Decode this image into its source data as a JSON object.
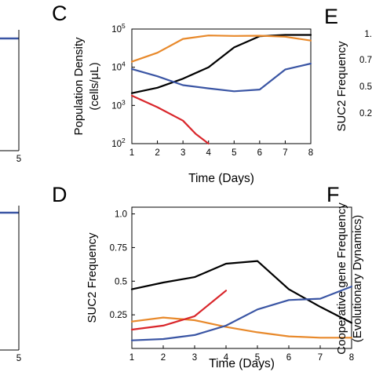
{
  "colors": {
    "black": "#000000",
    "orange": "#e8892b",
    "blue": "#3a55a4",
    "red": "#d9262b"
  },
  "panel_letters": {
    "c": "C",
    "d": "D",
    "e": "E",
    "f": "F"
  },
  "chart_data": [
    {
      "panel": "C",
      "type": "line",
      "xlabel": "Time (Days)",
      "ylabel_line1": "Population Density",
      "ylabel_line2": "(cells/μL)",
      "xlim": [
        1,
        8
      ],
      "ylim": [
        100,
        100000
      ],
      "yscale": "log",
      "x_ticks": [
        1,
        2,
        3,
        4,
        5,
        6,
        7,
        8
      ],
      "y_ticks": [
        {
          "value": 100,
          "base": "10",
          "exp": "2"
        },
        {
          "value": 1000,
          "base": "10",
          "exp": "3"
        },
        {
          "value": 10000,
          "base": "10",
          "exp": "4"
        },
        {
          "value": 100000,
          "base": "10",
          "exp": "5"
        }
      ],
      "series": [
        {
          "color": "black",
          "x": [
            1,
            2,
            3,
            4,
            5,
            6,
            7,
            8
          ],
          "y": [
            2100,
            2900,
            5000,
            10000,
            33000,
            65000,
            70000,
            70000
          ]
        },
        {
          "color": "orange",
          "x": [
            1,
            2,
            3,
            4,
            5,
            6,
            7,
            8
          ],
          "y": [
            14000,
            24000,
            55000,
            68000,
            66000,
            67000,
            63000,
            50000
          ]
        },
        {
          "color": "blue",
          "x": [
            1,
            2,
            3,
            4,
            5,
            6,
            7,
            8
          ],
          "y": [
            9000,
            5800,
            3400,
            2800,
            2350,
            2600,
            8700,
            12500
          ]
        },
        {
          "color": "red",
          "x": [
            1,
            2,
            3,
            3.5,
            4
          ],
          "y": [
            1800,
            900,
            400,
            180,
            100
          ]
        }
      ]
    },
    {
      "panel": "D",
      "type": "line",
      "xlabel": "Time (Days)",
      "ylabel": "SUC2 Frequency",
      "xlim": [
        1,
        8
      ],
      "ylim": [
        0,
        1.05
      ],
      "x_ticks": [
        1,
        2,
        3,
        4,
        5,
        6,
        7,
        8
      ],
      "y_ticks": [
        {
          "value": 0.25,
          "label": "0.25"
        },
        {
          "value": 0.5,
          "label": "0.5"
        },
        {
          "value": 0.75,
          "label": "0.75"
        },
        {
          "value": 1.0,
          "label": "1.0"
        }
      ],
      "series": [
        {
          "color": "black",
          "x": [
            1,
            2,
            3,
            4,
            5,
            6,
            7,
            8
          ],
          "y": [
            0.44,
            0.49,
            0.53,
            0.63,
            0.65,
            0.44,
            0.31,
            0.19
          ]
        },
        {
          "color": "orange",
          "x": [
            1,
            2,
            3,
            4,
            5,
            6,
            7,
            8
          ],
          "y": [
            0.2,
            0.23,
            0.21,
            0.16,
            0.12,
            0.09,
            0.08,
            0.08
          ]
        },
        {
          "color": "blue",
          "x": [
            1,
            2,
            3,
            4,
            5,
            6,
            7,
            8
          ],
          "y": [
            0.06,
            0.07,
            0.1,
            0.17,
            0.29,
            0.36,
            0.37,
            0.46
          ]
        },
        {
          "color": "red",
          "x": [
            1,
            2,
            3,
            4
          ],
          "y": [
            0.14,
            0.17,
            0.24,
            0.43
          ]
        }
      ]
    }
  ],
  "left_panels": {
    "top_tick": "5",
    "bottom_tick": "5"
  },
  "right_panels": {
    "e_ticks": [
      "1.",
      "0.7",
      "0.5",
      "0.2"
    ],
    "e_ylabel": "SUC2 Frequency",
    "f_ylabel_line1": "Cooperative gene Frequency",
    "f_ylabel_line2": "(Evolutionary Dynamics)"
  }
}
